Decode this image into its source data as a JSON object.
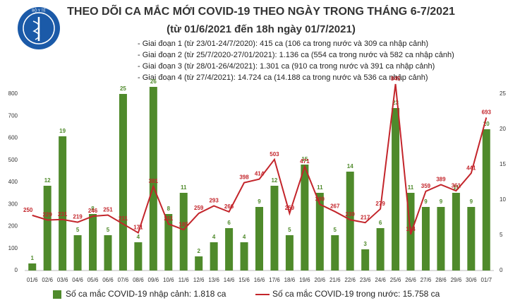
{
  "logo_text": "BỘ Y TẾ",
  "chart_data": {
    "type": "combo",
    "title": "THEO DÕI CA MẮC MỚI COVID-19 THEO NGÀY TRONG THÁNG 6-7/2021",
    "subtitle": "(từ 01/6/2021 đến 18h ngày 01/7/2021)",
    "notes": [
      "- Giai đoạn 1 (từ 23/01-24/7/2020): 415 ca (106 ca trong nước và 309 ca nhập cảnh)",
      "- Giai đoạn 2 (từ 25/7/2020-27/01/2021): 1.136 ca (554 ca trong nước và 582 ca nhập cảnh)",
      "- Giai đoạn 3 (từ 28/01-26/4/2021): 1.301 ca (910 ca trong nước và 391 ca nhập cảnh)",
      "- Giai đoạn 4 (từ 27/4/2021): 14.724 ca (14.188 ca trong nước và 536 ca nhập cảnh)"
    ],
    "categories": [
      "01/6",
      "02/6",
      "03/6",
      "04/6",
      "05/6",
      "06/6",
      "07/6",
      "08/6",
      "09/6",
      "10/6",
      "11/6",
      "12/6",
      "13/6",
      "14/6",
      "15/6",
      "16/6",
      "17/6",
      "18/6",
      "19/6",
      "20/6",
      "21/6",
      "22/6",
      "23/6",
      "24/6",
      "25/6",
      "26/6",
      "27/6",
      "28/6",
      "29/6",
      "30/6",
      "01/7"
    ],
    "series": [
      {
        "name": "Số ca mắc COVID-19 nhập cảnh: 1.818 ca",
        "type": "bar",
        "axis": "y2",
        "color": "#4f8a2b",
        "values": [
          1,
          12,
          19,
          5,
          8,
          5,
          25,
          4,
          26,
          8,
          11,
          2,
          4,
          6,
          4,
          9,
          12,
          5,
          15,
          11,
          5,
          14,
          3,
          6,
          23,
          11,
          9,
          9,
          11,
          9,
          20
        ]
      },
      {
        "name": "Số ca mắc COVID-19 trong nước: 15.758 ca",
        "type": "line",
        "color": "#c3252b",
        "values": [
          250,
          229,
          231,
          219,
          246,
          251,
          211,
          171,
          381,
          211,
          185,
          259,
          293,
          266,
          398,
          414,
          503,
          259,
          471,
          300,
          267,
          230,
          217,
          279,
          845,
          164,
          359,
          389,
          361,
          441,
          693
        ]
      }
    ],
    "ylim": [
      0,
      800
    ],
    "yticks": [
      0,
      100,
      200,
      300,
      400,
      500,
      600,
      700,
      800
    ],
    "y2lim": [
      0,
      25
    ],
    "y2ticks": [
      0,
      5,
      10,
      15,
      20,
      25
    ],
    "grid": false
  }
}
